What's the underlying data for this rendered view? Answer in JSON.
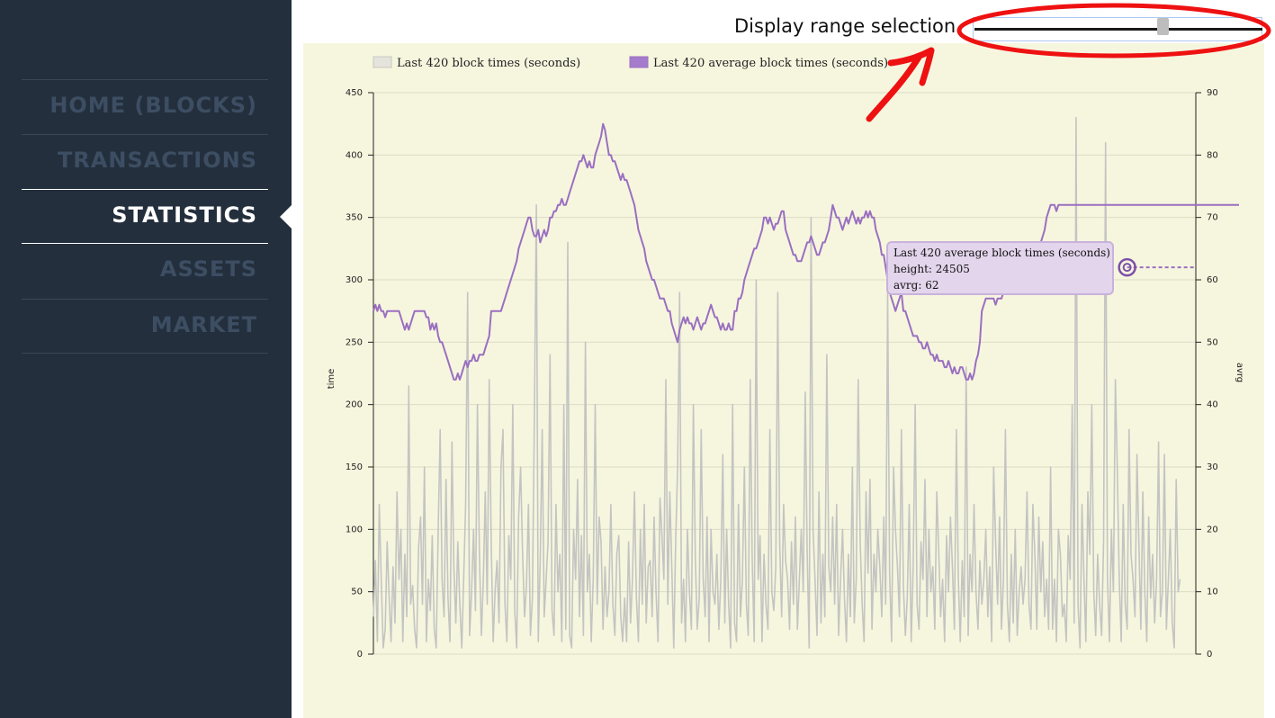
{
  "nav": {
    "items": [
      {
        "label": "HOME (BLOCKS)",
        "active": false
      },
      {
        "label": "TRANSACTIONS",
        "active": false
      },
      {
        "label": "STATISTICS",
        "active": true
      },
      {
        "label": "ASSETS",
        "active": false
      },
      {
        "label": "MARKET",
        "active": false
      }
    ]
  },
  "range_control": {
    "label": "Display range selection.",
    "value": 0.66
  },
  "tooltip": {
    "series": "Last 420 average block times (seconds)",
    "height_line": "height: 24505",
    "avrg_line": "avrg: 62"
  },
  "colors": {
    "sidebar": "#232f3d",
    "panel": "#f6f6df",
    "block_series": "#c4c4c2",
    "avg_series": "#9a6fc0",
    "annotation": "#ee1111"
  },
  "chart_data": {
    "type": "line",
    "title": "",
    "xlabel": "",
    "ylabel": "time",
    "y2label": "avrg",
    "ylim": [
      0,
      450
    ],
    "y2lim": [
      0,
      90
    ],
    "yticks": [
      0,
      50,
      100,
      150,
      200,
      250,
      300,
      350,
      400,
      450
    ],
    "y2ticks": [
      0,
      10,
      20,
      30,
      40,
      50,
      60,
      70,
      80,
      90
    ],
    "grid": true,
    "legend": "top-left",
    "x_count": 420,
    "series": [
      {
        "name": "Last 420 block times (seconds)",
        "axis": "left",
        "color": "#c4c4c2",
        "values": [
          30,
          75,
          10,
          120,
          60,
          5,
          20,
          90,
          45,
          10,
          70,
          25,
          130,
          60,
          100,
          10,
          80,
          30,
          215,
          40,
          55,
          20,
          5,
          85,
          110,
          40,
          150,
          10,
          60,
          35,
          95,
          20,
          5,
          100,
          180,
          60,
          30,
          140,
          45,
          10,
          170,
          70,
          25,
          90,
          40,
          5,
          60,
          120,
          290,
          15,
          50,
          100,
          35,
          200,
          80,
          15,
          60,
          130,
          40,
          220,
          90,
          10,
          50,
          75,
          25,
          150,
          180,
          40,
          10,
          95,
          60,
          200,
          35,
          5,
          110,
          150,
          80,
          30,
          55,
          120,
          15,
          45,
          190,
          360,
          10,
          75,
          180,
          30,
          60,
          90,
          240,
          35,
          15,
          120,
          50,
          80,
          10,
          200,
          20,
          330,
          15,
          5,
          100,
          60,
          140,
          30,
          95,
          15,
          250,
          50,
          80,
          10,
          60,
          200,
          40,
          110,
          90,
          20,
          70,
          30,
          50,
          120,
          40,
          15,
          80,
          95,
          30,
          10,
          45,
          10,
          90,
          25,
          60,
          130,
          45,
          10,
          100,
          40,
          120,
          25,
          70,
          75,
          30,
          110,
          50,
          10,
          125,
          95,
          60,
          220,
          40,
          130,
          70,
          5,
          90,
          150,
          290,
          25,
          60,
          10,
          100,
          50,
          20,
          200,
          80,
          20,
          45,
          180,
          60,
          30,
          110,
          10,
          100,
          50,
          40,
          80,
          20,
          60,
          160,
          25,
          100,
          40,
          5,
          200,
          25,
          10,
          120,
          30,
          60,
          150,
          40,
          15,
          220,
          75,
          10,
          300,
          60,
          95,
          10,
          80,
          40,
          20,
          180,
          50,
          35,
          70,
          290,
          90,
          30,
          120,
          75,
          60,
          20,
          90,
          40,
          110,
          20,
          60,
          100,
          50,
          210,
          80,
          5,
          350,
          100,
          60,
          15,
          130,
          25,
          80,
          30,
          240,
          70,
          50,
          110,
          40,
          120,
          15,
          60,
          100,
          45,
          10,
          80,
          30,
          150,
          25,
          60,
          220,
          90,
          40,
          10,
          130,
          65,
          140,
          20,
          80,
          50,
          100,
          70,
          30,
          110,
          40,
          290,
          65,
          10,
          150,
          100,
          70,
          30,
          180,
          55,
          15,
          45,
          120,
          10,
          70,
          200,
          40,
          20,
          90,
          60,
          140,
          30,
          100,
          50,
          70,
          20,
          130,
          85,
          30,
          60,
          10,
          95,
          50,
          110,
          70,
          20,
          180,
          60,
          10,
          75,
          30,
          230,
          15,
          80,
          50,
          120,
          50,
          20,
          75,
          40,
          60,
          100,
          30,
          70,
          10,
          150,
          90,
          40,
          110,
          20,
          60,
          180,
          40,
          10,
          80,
          25,
          100,
          15,
          50,
          70,
          40,
          60,
          130,
          40,
          20,
          120,
          80,
          20,
          110,
          50,
          90,
          30,
          60,
          20,
          150,
          20,
          60,
          10,
          100,
          80,
          30,
          40,
          10,
          95,
          60,
          200,
          25,
          430,
          40,
          5,
          120,
          60,
          10,
          130,
          80,
          200,
          50,
          15,
          80,
          40,
          15,
          90,
          410,
          60,
          10,
          100,
          50,
          220,
          150,
          60,
          10,
          120,
          40,
          20,
          180,
          80,
          60,
          30,
          160,
          90,
          20,
          130,
          50,
          10,
          110,
          45,
          80,
          25,
          60,
          170,
          30,
          50,
          160,
          20,
          60,
          100,
          25,
          5,
          140,
          50,
          60
        ]
      },
      {
        "name": "Last 420 average block times (seconds)",
        "axis": "right",
        "color": "#9a6fc0",
        "values": [
          55,
          56,
          55,
          56,
          55,
          55,
          54,
          55,
          55,
          55,
          55,
          55,
          55,
          55,
          54,
          53,
          52,
          53,
          52,
          53,
          54,
          55,
          55,
          55,
          55,
          55,
          55,
          54,
          54,
          52,
          53,
          52,
          53,
          51,
          50,
          50,
          49,
          48,
          47,
          46,
          45,
          44,
          44,
          45,
          44,
          45,
          46,
          47,
          46,
          47,
          47,
          48,
          47,
          47,
          48,
          48,
          48,
          49,
          50,
          51,
          55,
          55,
          55,
          55,
          55,
          55,
          56,
          57,
          58,
          59,
          60,
          61,
          62,
          63,
          65,
          66,
          67,
          68,
          69,
          70,
          70,
          68,
          67,
          67,
          68,
          66,
          67,
          68,
          67,
          68,
          70,
          70,
          71,
          71,
          72,
          72,
          73,
          72,
          72,
          73,
          74,
          75,
          76,
          77,
          78,
          79,
          79,
          80,
          79,
          78,
          79,
          78,
          78,
          80,
          81,
          82,
          83,
          85,
          84,
          82,
          80,
          80,
          79,
          79,
          78,
          77,
          76,
          77,
          76,
          76,
          75,
          74,
          73,
          72,
          70,
          68,
          67,
          66,
          65,
          63,
          62,
          61,
          60,
          60,
          59,
          58,
          57,
          57,
          57,
          56,
          55,
          55,
          53,
          52,
          51,
          50,
          52,
          53,
          54,
          53,
          54,
          53,
          53,
          52,
          53,
          54,
          53,
          52,
          53,
          53,
          54,
          55,
          56,
          55,
          54,
          54,
          53,
          52,
          53,
          52,
          52,
          53,
          52,
          52,
          55,
          55,
          57,
          57,
          58,
          60,
          61,
          62,
          63,
          64,
          65,
          65,
          66,
          67,
          68,
          70,
          70,
          69,
          70,
          69,
          68,
          69,
          69,
          70,
          71,
          71,
          68,
          67,
          66,
          65,
          64,
          64,
          63,
          63,
          63,
          64,
          65,
          66,
          66,
          67,
          66,
          65,
          64,
          64,
          65,
          66,
          66,
          67,
          68,
          70,
          72,
          71,
          70,
          70,
          69,
          68,
          69,
          70,
          69,
          70,
          71,
          70,
          69,
          70,
          69,
          70,
          70,
          71,
          70,
          71,
          70,
          70,
          68,
          67,
          66,
          64,
          64,
          62,
          60,
          58,
          57,
          56,
          55,
          56,
          57,
          58,
          55,
          55,
          54,
          53,
          52,
          51,
          51,
          51,
          50,
          50,
          49,
          49,
          50,
          49,
          48,
          48,
          47,
          48,
          47,
          47,
          47,
          46,
          46,
          47,
          46,
          45,
          46,
          45,
          45,
          46,
          46,
          45,
          44,
          44,
          45,
          44,
          45,
          47,
          48,
          50,
          55,
          56,
          57,
          57,
          57,
          57,
          57,
          56,
          57,
          57,
          57,
          58,
          59,
          60,
          61,
          60,
          61,
          60,
          62,
          63,
          65,
          66,
          65,
          66,
          65,
          64,
          65,
          65,
          65,
          66,
          66,
          67,
          68,
          70,
          71,
          72,
          72,
          72,
          71,
          72,
          72,
          72,
          72,
          72,
          72,
          72,
          72,
          72,
          72,
          72,
          72,
          72,
          72,
          72,
          72,
          72,
          72,
          72,
          72,
          72,
          72,
          72,
          72,
          72,
          72,
          72,
          72,
          72,
          72,
          72,
          72,
          72,
          72,
          72,
          72,
          72,
          72,
          72,
          72,
          72,
          72,
          72,
          72,
          72,
          72,
          72,
          72,
          72,
          72,
          72,
          72,
          72,
          72,
          72,
          72,
          72,
          72,
          72,
          72,
          72,
          72,
          72,
          72,
          72,
          72,
          72,
          72,
          72,
          72,
          72,
          72,
          72,
          72,
          72,
          72,
          72,
          72,
          72,
          72,
          72,
          72,
          72,
          72,
          72,
          72,
          72,
          72,
          72,
          72,
          72,
          72,
          72
        ]
      }
    ]
  }
}
